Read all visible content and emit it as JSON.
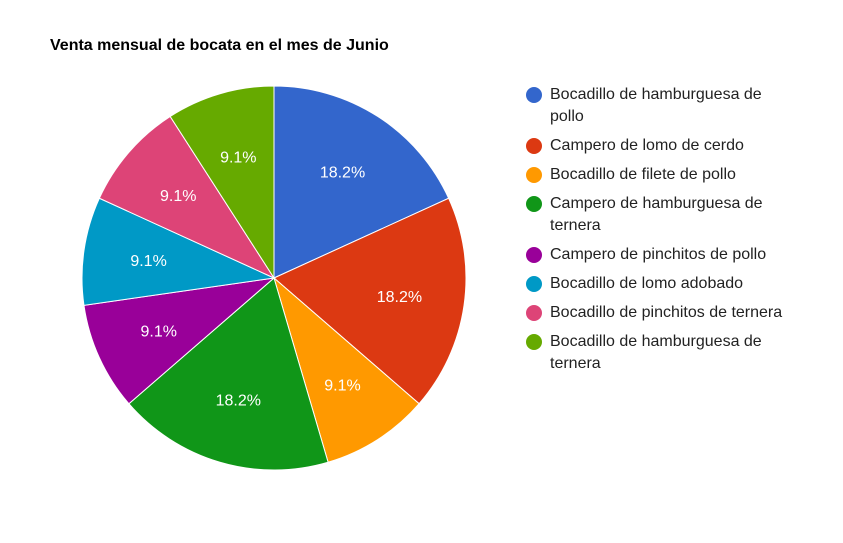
{
  "chart_data": {
    "type": "pie",
    "title": "Venta mensual de bocata en el mes de Junio",
    "legend_position": "right",
    "slices": [
      {
        "label": "Bocadillo de hamburguesa de pollo",
        "value": 18.2,
        "value_label": "18.2%",
        "color": "#3366cc"
      },
      {
        "label": "Campero de lomo de cerdo",
        "value": 18.2,
        "value_label": "18.2%",
        "color": "#dc3912"
      },
      {
        "label": "Bocadillo de filete de pollo",
        "value": 9.1,
        "value_label": "9.1%",
        "color": "#ff9900"
      },
      {
        "label": "Campero de hamburguesa de ternera",
        "value": 18.2,
        "value_label": "18.2%",
        "color": "#109618"
      },
      {
        "label": "Campero de pinchitos de pollo",
        "value": 9.1,
        "value_label": "9.1%",
        "color": "#990099"
      },
      {
        "label": "Bocadillo de lomo adobado",
        "value": 9.1,
        "value_label": "9.1%",
        "color": "#0099c6"
      },
      {
        "label": "Bocadillo de pinchitos de ternera",
        "value": 9.1,
        "value_label": "9.1%",
        "color": "#dd4477"
      },
      {
        "label": "Bocadillo de hamburguesa de ternera",
        "value": 9.1,
        "value_label": "9.1%",
        "color": "#66aa00"
      }
    ]
  }
}
